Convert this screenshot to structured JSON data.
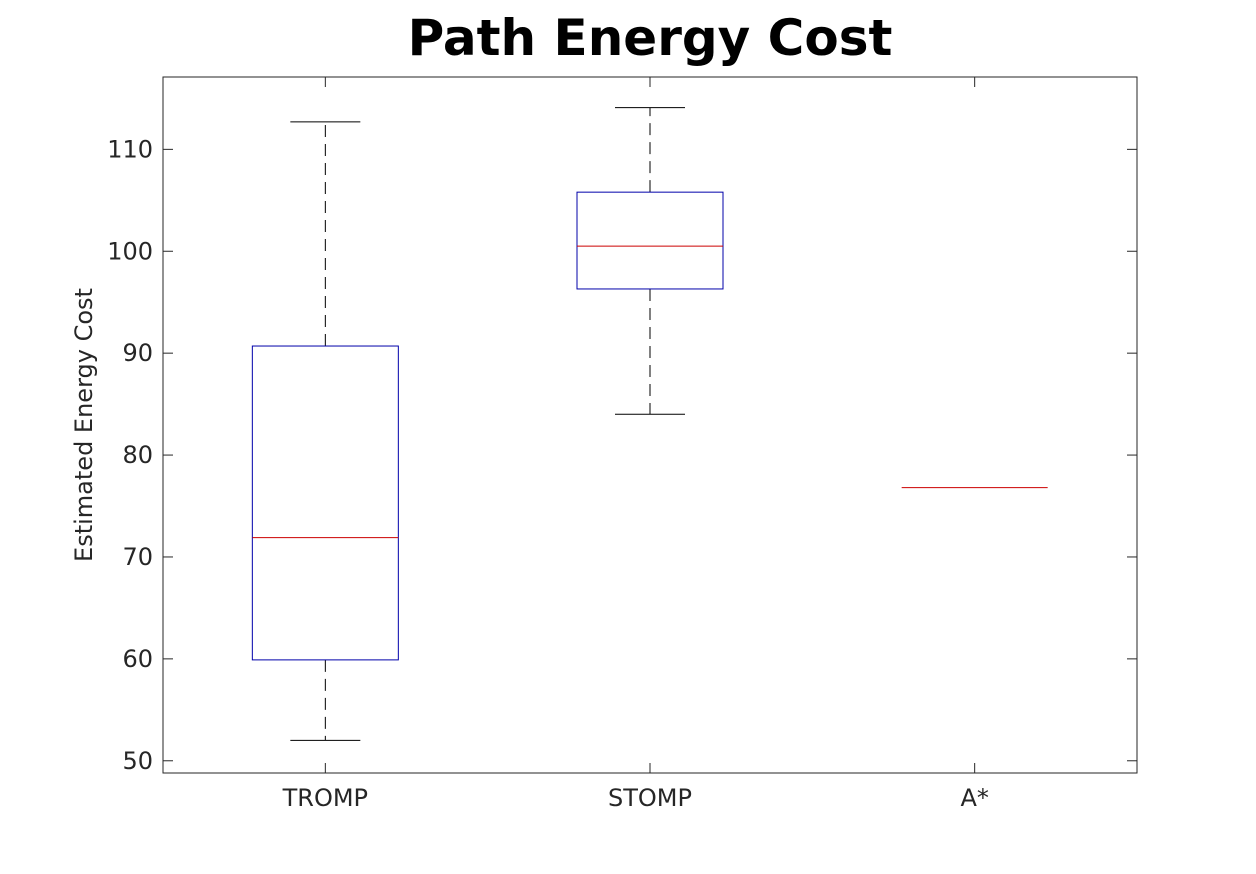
{
  "chart_data": {
    "type": "box",
    "title": "Path Energy Cost",
    "xlabel": "",
    "ylabel": "Estimated Energy Cost",
    "ylim": [
      48.8,
      117.1
    ],
    "yticks": [
      50,
      60,
      70,
      80,
      90,
      100,
      110
    ],
    "grid": false,
    "categories": [
      "TROMP",
      "STOMP",
      "A*"
    ],
    "boxes": [
      {
        "category": "TROMP",
        "whisker_low": 52.0,
        "q1": 59.9,
        "median": 71.9,
        "q3": 90.7,
        "whisker_high": 112.7
      },
      {
        "category": "STOMP",
        "whisker_low": 84.0,
        "q1": 96.3,
        "median": 100.5,
        "q3": 105.8,
        "whisker_high": 114.1
      },
      {
        "category": "A*",
        "whisker_low": 76.8,
        "q1": 76.8,
        "median": 76.8,
        "q3": 76.8,
        "whisker_high": 76.8
      }
    ]
  },
  "colors": {
    "box": "#0000aa",
    "median": "#cc0000",
    "whisker": "#000000",
    "axis": "#262626"
  }
}
